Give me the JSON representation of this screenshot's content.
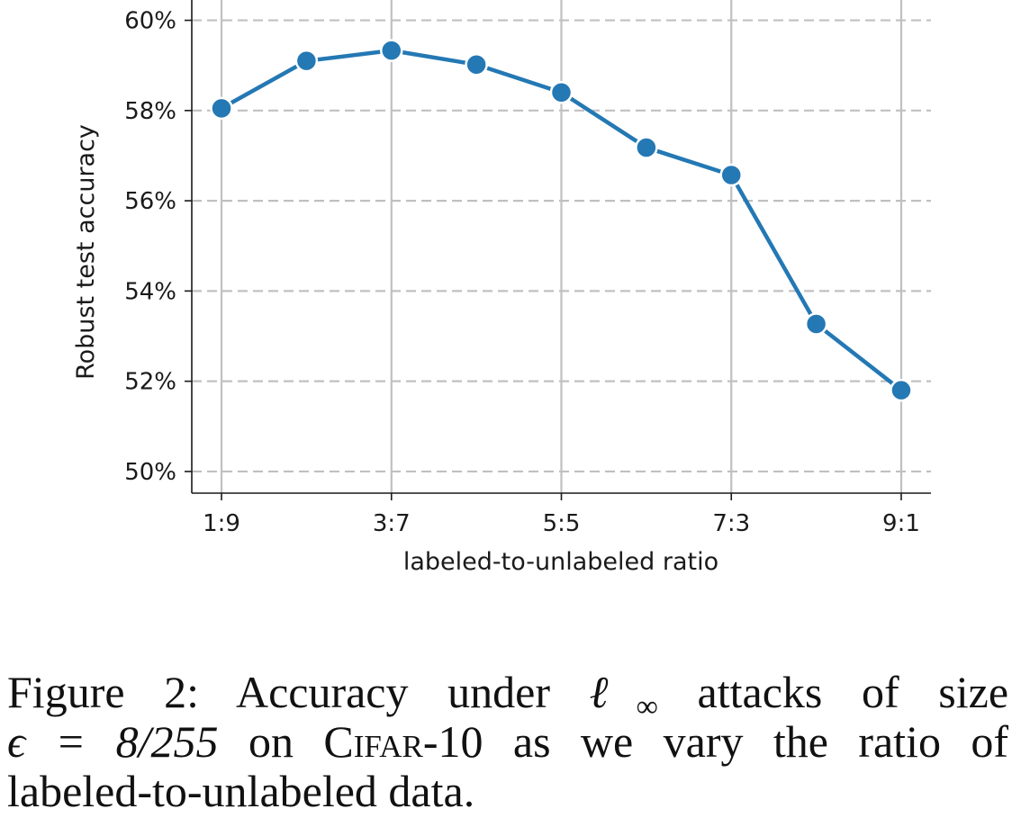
{
  "chart_data": {
    "type": "line",
    "title": "",
    "xlabel": "labeled-to-unlabeled ratio",
    "ylabel": "Robust test accuracy",
    "x": [
      1,
      2,
      3,
      4,
      5,
      6,
      7,
      8,
      9
    ],
    "values": [
      58.05,
      59.1,
      59.33,
      59.02,
      58.4,
      57.18,
      56.57,
      53.27,
      51.8
    ],
    "xticks": [
      1,
      3,
      5,
      7,
      9
    ],
    "xtick_labels": [
      "1:9",
      "3:7",
      "5:5",
      "7:3",
      "9:1"
    ],
    "yticks": [
      50,
      52,
      54,
      56,
      58,
      60
    ],
    "ytick_labels": [
      "50%",
      "52%",
      "54%",
      "56%",
      "58%",
      "60%"
    ],
    "xlim": [
      0.65,
      9.35
    ],
    "ylim": [
      49.52,
      60.45
    ],
    "grid": true,
    "line_color": "#2478b4",
    "grid_color": "#c0c0c0"
  },
  "caption": {
    "label": "Figure 2:",
    "text_a": "Accuracy under",
    "symbol": "ℓ",
    "subscript": "∞",
    "text_b": "attacks of size",
    "epsilon": "ϵ = 8/255",
    "text_c": "on",
    "dataset": "Cifar-10",
    "text_d": "as we vary the ratio of",
    "text_e": "labeled-to-unlabeled data."
  }
}
